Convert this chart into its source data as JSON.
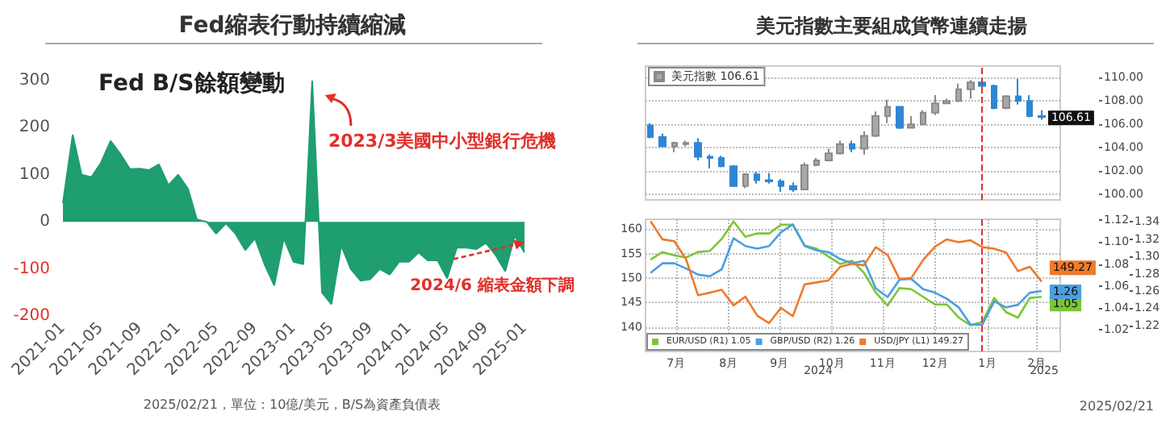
{
  "chart_data": [
    {
      "type": "area",
      "title": "Fed縮表行動持續縮減",
      "subtitle": "Fed B/S餘額變動",
      "x": [
        "2021-01",
        "2021-02",
        "2021-03",
        "2021-04",
        "2021-05",
        "2021-06",
        "2021-07",
        "2021-08",
        "2021-09",
        "2021-10",
        "2021-11",
        "2021-12",
        "2022-01",
        "2022-02",
        "2022-03",
        "2022-04",
        "2022-05",
        "2022-06",
        "2022-07",
        "2022-08",
        "2022-09",
        "2022-10",
        "2022-11",
        "2022-12",
        "2023-01",
        "2023-02",
        "2023-03",
        "2023-04",
        "2023-05",
        "2023-06",
        "2023-07",
        "2023-08",
        "2023-09",
        "2023-10",
        "2023-11",
        "2023-12",
        "2024-01",
        "2024-02",
        "2024-03",
        "2024-04",
        "2024-05",
        "2024-06",
        "2024-07",
        "2024-08",
        "2024-09",
        "2024-10",
        "2024-11",
        "2024-12",
        "2025-01"
      ],
      "series": [
        {
          "color": "#1f9e70",
          "values": [
            40,
            185,
            100,
            95,
            125,
            172,
            145,
            112,
            113,
            110,
            122,
            78,
            100,
            70,
            5,
            0,
            -25,
            -3,
            -25,
            -60,
            -35,
            -90,
            -135,
            -35,
            -85,
            -90,
            300,
            -150,
            -175,
            -50,
            -100,
            -125,
            -122,
            -100,
            -112,
            -85,
            -85,
            -65,
            -82,
            -82,
            -120,
            -55,
            -55,
            -58,
            -45,
            -70,
            -105,
            -30,
            -65
          ]
        }
      ],
      "xlim": [
        "2021-01",
        "2025-01"
      ],
      "xticks": [
        "2021-01",
        "2021-05",
        "2021-09",
        "2022-01",
        "2022-05",
        "2022-09",
        "2023-01",
        "2023-05",
        "2023-09",
        "2024-01",
        "2024-05",
        "2024-09",
        "2025-01"
      ],
      "ylim": [
        -200,
        300
      ],
      "yticks": [
        -200,
        -100,
        0,
        100,
        200,
        300
      ],
      "grid": false,
      "legend": false,
      "annotations": [
        {
          "text": "2023/3美國中小型銀行危機",
          "x": "2023-03",
          "y": 300
        },
        {
          "text": "2024/6 縮表金額下調",
          "x": "2025-01",
          "y": -45
        },
        "2025/02/21，單位：10億/美元，B/S為資產負債表"
      ]
    },
    {
      "type": "candlestick",
      "title": "美元指數主要組成貨幣連續走揚",
      "x": [
        "2024-07-01",
        "2024-07-08",
        "2024-07-15",
        "2024-07-22",
        "2024-07-29",
        "2024-08-05",
        "2024-08-12",
        "2024-08-19",
        "2024-08-26",
        "2024-09-02",
        "2024-09-09",
        "2024-09-16",
        "2024-09-23",
        "2024-09-30",
        "2024-10-07",
        "2024-10-14",
        "2024-10-21",
        "2024-10-28",
        "2024-11-04",
        "2024-11-11",
        "2024-11-18",
        "2024-11-25",
        "2024-12-02",
        "2024-12-09",
        "2024-12-16",
        "2024-12-23",
        "2024-12-30",
        "2025-01-06",
        "2025-01-13",
        "2025-01-20",
        "2025-01-27",
        "2025-02-03",
        "2025-02-10",
        "2025-02-17"
      ],
      "series": [
        {
          "name": "美元指數 106.61",
          "ohlc": [
            [
              105.9,
              106.1,
              104.8,
              104.9
            ],
            [
              104.9,
              105.2,
              104.1,
              104.1
            ],
            [
              104.1,
              104.5,
              103.6,
              104.4
            ],
            [
              104.3,
              104.6,
              104.1,
              104.4
            ],
            [
              104.4,
              104.8,
              102.9,
              103.2
            ],
            [
              103.2,
              103.4,
              102.2,
              103.1
            ],
            [
              103.1,
              103.3,
              102.3,
              102.4
            ],
            [
              102.4,
              102.5,
              100.6,
              100.7
            ],
            [
              100.7,
              101.8,
              100.5,
              101.7
            ],
            [
              101.7,
              101.9,
              100.9,
              101.2
            ],
            [
              101.2,
              101.8,
              100.9,
              101.1
            ],
            [
              101.1,
              101.3,
              100.2,
              100.7
            ],
            [
              100.7,
              101.0,
              100.2,
              100.4
            ],
            [
              100.4,
              102.7,
              100.4,
              102.5
            ],
            [
              102.5,
              103.1,
              102.4,
              102.9
            ],
            [
              102.9,
              103.9,
              102.8,
              103.5
            ],
            [
              103.5,
              104.6,
              103.4,
              104.3
            ],
            [
              104.3,
              104.6,
              103.6,
              103.9
            ],
            [
              103.9,
              105.4,
              103.4,
              105.0
            ],
            [
              105.0,
              107.1,
              104.9,
              106.7
            ],
            [
              106.7,
              108.1,
              106.1,
              107.5
            ],
            [
              107.5,
              107.5,
              105.6,
              105.7
            ],
            [
              105.7,
              106.7,
              105.7,
              106.0
            ],
            [
              106.0,
              107.2,
              105.9,
              107.0
            ],
            [
              107.0,
              108.5,
              106.8,
              107.8
            ],
            [
              107.8,
              108.2,
              107.8,
              108.0
            ],
            [
              108.0,
              109.5,
              107.9,
              109.0
            ],
            [
              109.0,
              109.8,
              108.2,
              109.6
            ],
            [
              109.6,
              110.0,
              108.9,
              109.3
            ],
            [
              109.3,
              109.4,
              107.3,
              107.4
            ],
            [
              107.4,
              108.5,
              107.3,
              108.4
            ],
            [
              108.4,
              109.9,
              107.7,
              108.0
            ],
            [
              108.0,
              108.5,
              106.6,
              106.7
            ],
            [
              106.7,
              107.2,
              106.4,
              106.61
            ]
          ]
        }
      ],
      "xlim": [
        "2024-06-28",
        "2025-02-28"
      ],
      "ylim": [
        99.5,
        111
      ],
      "yticks": [
        {
          "value": 100,
          "label": "100.00"
        },
        {
          "value": 102,
          "label": "102.00"
        },
        {
          "value": 104,
          "label": "104.00"
        },
        {
          "value": 106,
          "label": "106.00"
        },
        {
          "value": 108,
          "label": "108.00"
        },
        {
          "value": 110,
          "label": "110.00"
        }
      ],
      "tick_labels": "y",
      "grid": true,
      "legend": "top left",
      "ref_lines": [
        {
          "axis": "x",
          "value": "2025-01-13",
          "color": "#e0302a",
          "line_style": "dashed"
        }
      ],
      "annotations": [
        {
          "text": "106.61",
          "x": "2025-02-17",
          "y": 106.61
        }
      ]
    },
    {
      "type": "line",
      "x": [
        "2024-07-01",
        "2024-07-08",
        "2024-07-15",
        "2024-07-22",
        "2024-07-29",
        "2024-08-05",
        "2024-08-12",
        "2024-08-19",
        "2024-08-26",
        "2024-09-02",
        "2024-09-09",
        "2024-09-16",
        "2024-09-23",
        "2024-09-30",
        "2024-10-07",
        "2024-10-14",
        "2024-10-21",
        "2024-10-28",
        "2024-11-04",
        "2024-11-11",
        "2024-11-18",
        "2024-11-25",
        "2024-12-02",
        "2024-12-09",
        "2024-12-16",
        "2024-12-23",
        "2024-12-30",
        "2025-01-06",
        "2025-01-13",
        "2025-01-20",
        "2025-01-27",
        "2025-02-03",
        "2025-02-10",
        "2025-02-17"
      ],
      "series": [
        {
          "name": "EUR/USD (R1) 1.05",
          "color": "#7cc536",
          "axis": "y2",
          "values": [
            1.084,
            1.091,
            1.088,
            1.086,
            1.091,
            1.092,
            1.103,
            1.119,
            1.105,
            1.108,
            1.108,
            1.116,
            1.116,
            1.097,
            1.094,
            1.087,
            1.08,
            1.083,
            1.072,
            1.054,
            1.042,
            1.058,
            1.057,
            1.05,
            1.043,
            1.043,
            1.031,
            1.024,
            1.027,
            1.049,
            1.036,
            1.031,
            1.049,
            1.05
          ],
          "value_labels": [
            null,
            null,
            null,
            null,
            null,
            null,
            null,
            null,
            null,
            null,
            null,
            null,
            null,
            null,
            null,
            null,
            null,
            null,
            null,
            null,
            null,
            null,
            null,
            null,
            null,
            null,
            null,
            null,
            null,
            null,
            null,
            null,
            null,
            "1.05"
          ]
        },
        {
          "name": "GBP/USD (R2) 1.26",
          "color": "#4a9fe0",
          "axis": "y3",
          "values": [
            1.281,
            1.292,
            1.292,
            1.286,
            1.279,
            1.277,
            1.285,
            1.321,
            1.312,
            1.309,
            1.312,
            1.328,
            1.337,
            1.312,
            1.307,
            1.305,
            1.297,
            1.292,
            1.295,
            1.263,
            1.253,
            1.273,
            1.274,
            1.262,
            1.258,
            1.251,
            1.241,
            1.221,
            1.221,
            1.248,
            1.241,
            1.244,
            1.258,
            1.26
          ],
          "value_labels": [
            null,
            null,
            null,
            null,
            null,
            null,
            null,
            null,
            null,
            null,
            null,
            null,
            null,
            null,
            null,
            null,
            null,
            null,
            null,
            null,
            null,
            null,
            null,
            null,
            null,
            null,
            null,
            null,
            null,
            null,
            null,
            null,
            null,
            "1.26"
          ]
        },
        {
          "name": "USD/JPY (L1) 149.27",
          "color": "#ee7a2c",
          "values": [
            161.6,
            157.9,
            157.5,
            153.8,
            146.5,
            147.0,
            147.6,
            144.4,
            146.2,
            142.3,
            140.8,
            143.9,
            142.2,
            148.7,
            149.1,
            149.5,
            152.3,
            152.9,
            152.6,
            156.3,
            154.7,
            149.8,
            150.0,
            153.7,
            156.4,
            157.9,
            157.3,
            157.7,
            156.3,
            156.0,
            155.2,
            151.4,
            152.3,
            149.27
          ],
          "value_labels": [
            null,
            null,
            null,
            null,
            null,
            null,
            null,
            null,
            null,
            null,
            null,
            null,
            null,
            null,
            null,
            null,
            null,
            null,
            null,
            null,
            null,
            null,
            null,
            null,
            null,
            null,
            null,
            null,
            null,
            null,
            null,
            null,
            null,
            "149.27"
          ]
        }
      ],
      "xlim": [
        "2024-06-28",
        "2025-02-28"
      ],
      "xticks": [
        {
          "value": "2024-07-16",
          "label": "7月"
        },
        {
          "value": "2024-08-16",
          "label": "8月"
        },
        {
          "value": "2024-09-15",
          "label": "9月"
        },
        {
          "value": "2024-10-16",
          "label": "10月"
        },
        {
          "value": "2024-11-15",
          "label": "11月"
        },
        {
          "value": "2024-12-16",
          "label": "12月"
        },
        {
          "value": "2025-01-16",
          "label": "1月"
        },
        {
          "value": "2025-02-14",
          "label": "2月"
        }
      ],
      "ylim": [
        135,
        162
      ],
      "yticks": [
        140,
        145,
        150,
        155,
        160
      ],
      "y2lim": [
        1.0,
        1.121
      ],
      "y2ticks": [
        {
          "value": 1.02,
          "label": "1.02"
        },
        {
          "value": 1.04,
          "label": "1.04"
        },
        {
          "value": 1.06,
          "label": "1.06"
        },
        {
          "value": 1.08,
          "label": "1.08"
        },
        {
          "value": 1.1,
          "label": "1.10"
        },
        {
          "value": 1.12,
          "label": "1.12"
        }
      ],
      "y3lim": [
        1.19,
        1.343
      ],
      "y3ticks": [
        {
          "value": 1.22,
          "label": "1.22"
        },
        {
          "value": 1.24,
          "label": "1.24"
        },
        {
          "value": 1.26,
          "label": "1.26"
        },
        {
          "value": 1.28,
          "label": "1.28"
        },
        {
          "value": 1.3,
          "label": "1.30"
        },
        {
          "value": 1.32,
          "label": "1.32"
        },
        {
          "value": 1.34,
          "label": "1.34"
        }
      ],
      "grid": true,
      "legend": "bottom left",
      "marker": "none",
      "line_style": "solid",
      "ref_lines": [
        {
          "axis": "x",
          "value": "2025-01-13",
          "color": "#e0302a",
          "line_style": "dashed"
        }
      ],
      "annotations": [
        "2024",
        "2025",
        "2025/02/21"
      ]
    }
  ]
}
